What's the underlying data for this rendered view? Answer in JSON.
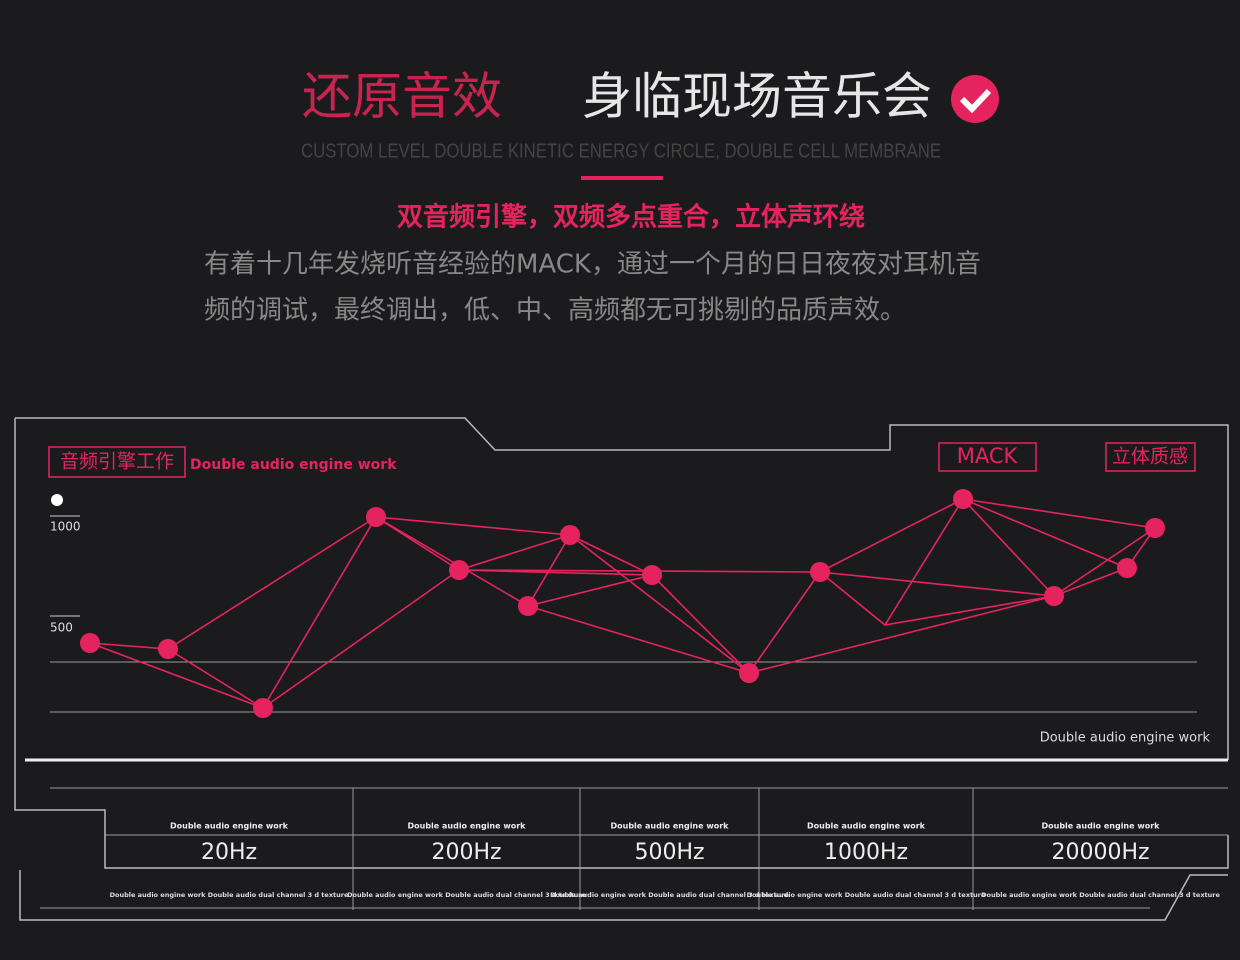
{
  "header": {
    "title_left": "还原音效",
    "title_right": "身临现场音乐会",
    "subtitle": "CUSTOM LEVEL DOUBLE KINETIC ENERGY CIRCLE, DOUBLE CELL MEMBRANE",
    "headline": "双音频引擎，双频多点重合，立体声环绕",
    "body": [
      "有着十几年发烧听音经验的MACK，通过一个月的日日夜夜对耳机音",
      "频的调试，最终调出，低、中、高频都无可挑剔的品质声效。"
    ]
  },
  "panel": {
    "tag": "音频引擎工作",
    "tag_en": "Double audio engine work",
    "badges": [
      "MACK",
      "立体质感"
    ],
    "axis_labels": [
      "1000",
      "500"
    ],
    "footer": "Double audio engine work"
  },
  "table": {
    "columns": [
      {
        "top": "Double audio engine work",
        "label": "20Hz",
        "bottom": "Double audio engine work Double audio dual channel 3 d texture"
      },
      {
        "top": "Double audio engine work",
        "label": "200Hz",
        "bottom": "Double audio engine work Double audio dual channel 3 d texture"
      },
      {
        "top": "Double audio engine work",
        "label": "500Hz",
        "bottom": "Double audio engine work Double audio dual channel 3 d texture"
      },
      {
        "top": "Double audio engine work",
        "label": "1000Hz",
        "bottom": "Double audio engine work Double audio dual channel 3 d texture"
      },
      {
        "top": "Double audio engine work",
        "label": "20000Hz",
        "bottom": "Double audio engine work Double audio dual channel 3 d texture"
      }
    ]
  }
}
